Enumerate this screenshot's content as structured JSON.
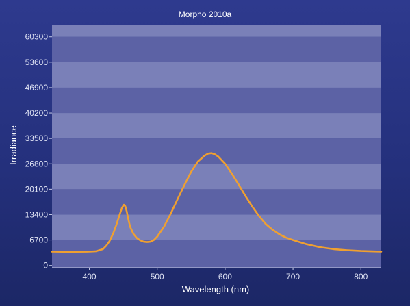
{
  "chart_data": {
    "type": "line",
    "title": "Morpho 2010a",
    "xlabel": "Wavelength (nm)",
    "ylabel": "Irradiance",
    "xlim": [
      345,
      830
    ],
    "ylim": [
      -600,
      63500
    ],
    "x_ticks": [
      400,
      500,
      600,
      700,
      800
    ],
    "y_ticks": [
      0,
      6700,
      13400,
      20100,
      26800,
      33500,
      40200,
      46900,
      53600,
      60300
    ],
    "grid": "horizontal alternating bands",
    "series": [
      {
        "color": "#f0a030",
        "x": [
          345,
          360,
          380,
          400,
          410,
          420,
          425,
          430,
          435,
          440,
          445,
          448,
          451,
          453,
          455,
          457,
          460,
          465,
          470,
          475,
          480,
          485,
          490,
          495,
          500,
          510,
          520,
          530,
          540,
          550,
          560,
          570,
          575,
          580,
          585,
          590,
          600,
          610,
          620,
          630,
          640,
          650,
          660,
          670,
          680,
          690,
          700,
          720,
          740,
          760,
          780,
          800,
          820,
          830
        ],
        "y": [
          3650,
          3600,
          3600,
          3650,
          3750,
          4300,
          5200,
          6500,
          8400,
          10800,
          13600,
          15200,
          16000,
          15600,
          14300,
          12500,
          10200,
          8300,
          7200,
          6600,
          6250,
          6150,
          6250,
          6700,
          7600,
          10200,
          13700,
          17500,
          21200,
          24700,
          27400,
          29000,
          29500,
          29600,
          29300,
          28700,
          26800,
          24200,
          21300,
          18300,
          15500,
          13000,
          10900,
          9400,
          8200,
          7300,
          6700,
          5600,
          4800,
          4300,
          4000,
          3800,
          3700,
          3650
        ]
      }
    ]
  },
  "colors": {
    "background": "#2a3687",
    "band_light": "#7a80b8",
    "band_dark": "#5c62a5",
    "series": "#f0a030"
  }
}
